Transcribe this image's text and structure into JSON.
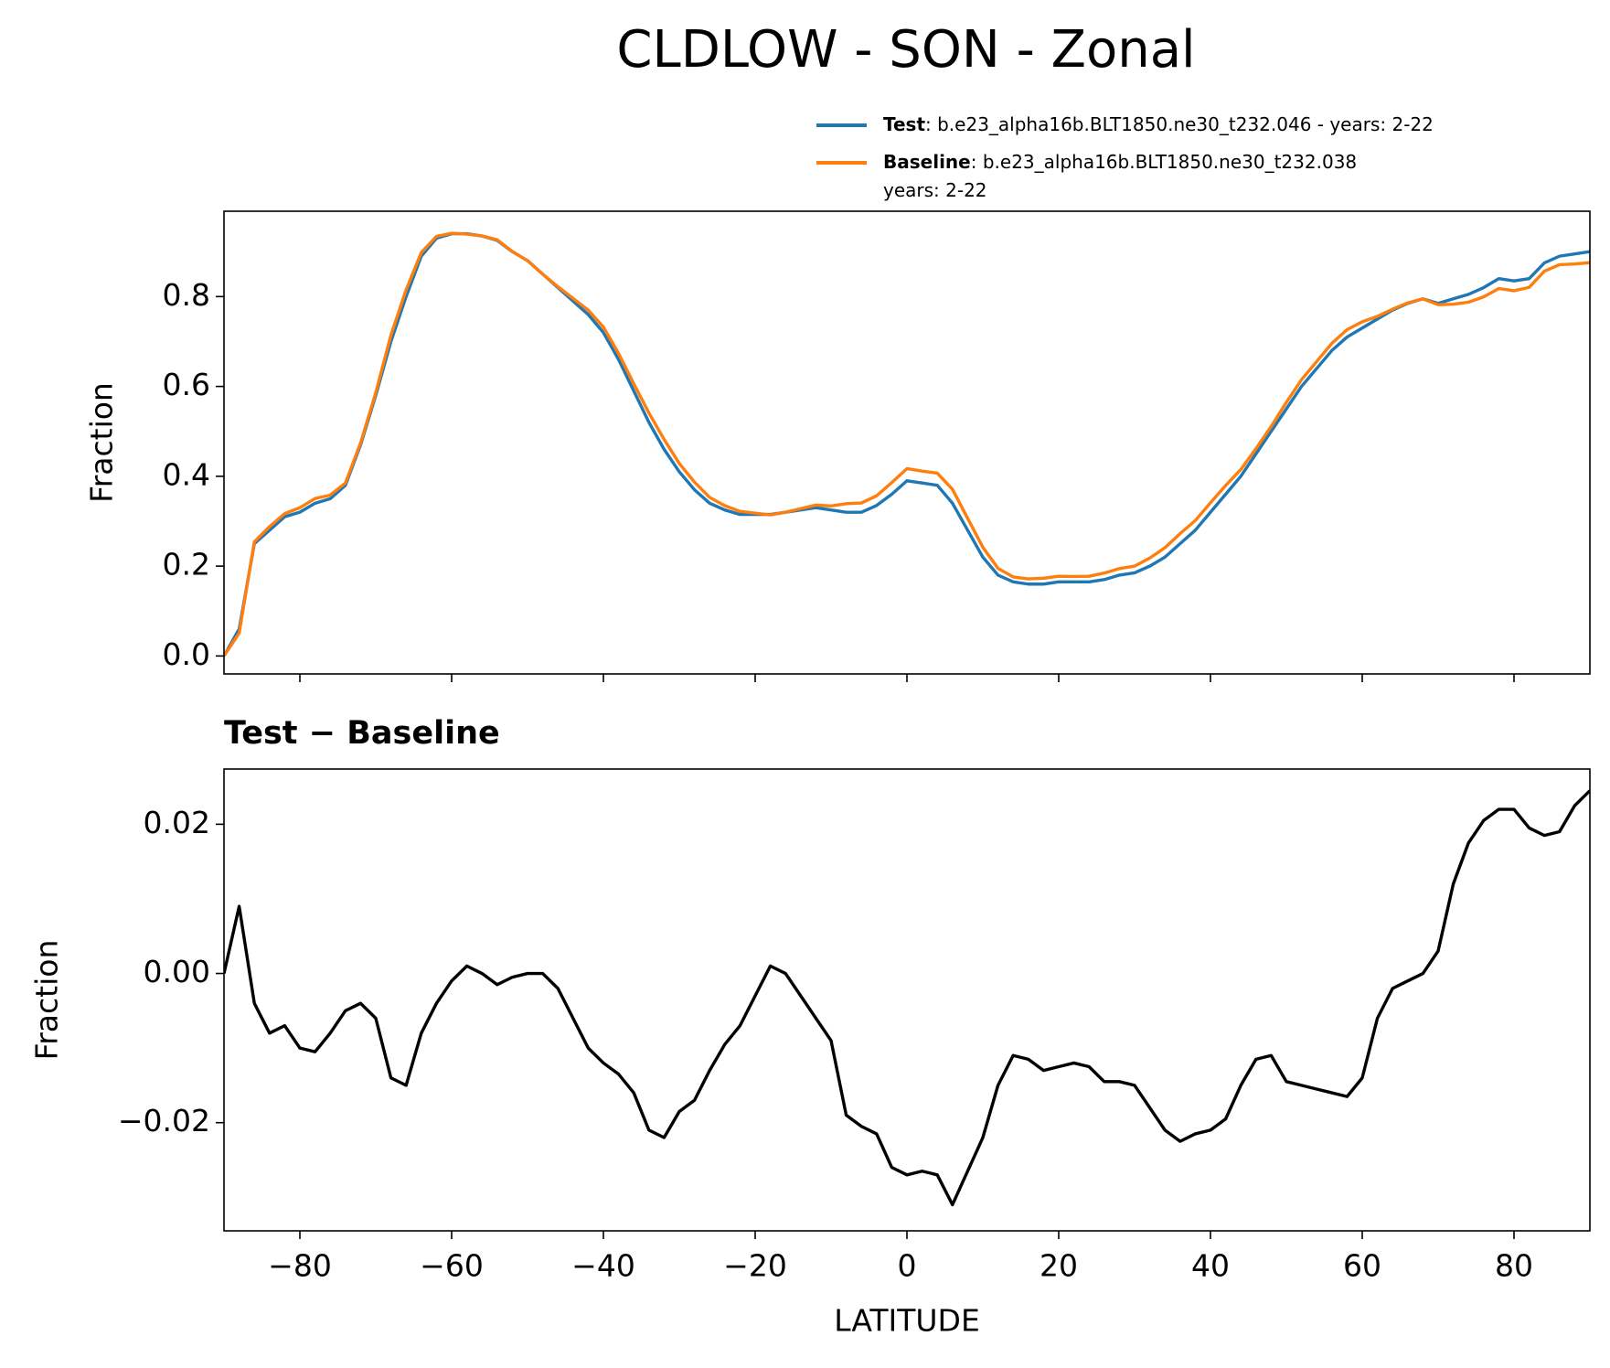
{
  "title": "CLDLOW - SON - Zonal",
  "chart_data": [
    {
      "type": "line",
      "ylabel": "Fraction",
      "legend_text": [
        [
          ": b.e23_alpha16b.BLT1850.ne30_t232.046 - years: 2-22"
        ],
        [
          ": b.e23_alpha16b.BLT1850.ne30_t232.038",
          "years: 2-22"
        ]
      ],
      "x_tick_labels": false,
      "xlim": [
        -90,
        90
      ],
      "xticks": [
        -80,
        -60,
        -40,
        -20,
        0,
        20,
        40,
        60,
        80
      ],
      "ylim": [
        -0.04,
        0.99
      ],
      "yticks": [
        {
          "value": 0,
          "label": "0.0"
        },
        {
          "value": 0.2,
          "label": "0.2"
        },
        {
          "value": 0.4,
          "label": "0.4"
        },
        {
          "value": 0.6,
          "label": "0.6"
        },
        {
          "value": 0.8,
          "label": "0.8"
        }
      ],
      "x": [
        -90,
        -88,
        -86,
        -84,
        -82,
        -80,
        -78,
        -76,
        -74,
        -72,
        -70,
        -68,
        -66,
        -64,
        -62,
        -60,
        -58,
        -56,
        -54,
        -52,
        -50,
        -48,
        -46,
        -44,
        -42,
        -40,
        -38,
        -36,
        -34,
        -32,
        -30,
        -28,
        -26,
        -24,
        -22,
        -20,
        -18,
        -16,
        -14,
        -12,
        -10,
        -8,
        -6,
        -4,
        -2,
        0,
        2,
        4,
        6,
        8,
        10,
        12,
        14,
        16,
        18,
        20,
        22,
        24,
        26,
        28,
        30,
        32,
        34,
        36,
        38,
        40,
        42,
        44,
        46,
        48,
        50,
        52,
        54,
        56,
        58,
        60,
        62,
        64,
        66,
        68,
        70,
        72,
        74,
        76,
        78,
        80,
        82,
        84,
        86,
        88,
        90
      ],
      "series": [
        {
          "name": "Test",
          "color": "#1f77b4",
          "values": [
            0.0,
            0.06,
            0.25,
            0.28,
            0.31,
            0.32,
            0.34,
            0.35,
            0.38,
            0.47,
            0.58,
            0.7,
            0.8,
            0.89,
            0.93,
            0.94,
            0.94,
            0.935,
            0.925,
            0.9,
            0.88,
            0.85,
            0.82,
            0.79,
            0.76,
            0.72,
            0.66,
            0.59,
            0.52,
            0.46,
            0.41,
            0.37,
            0.34,
            0.325,
            0.315,
            0.315,
            0.315,
            0.32,
            0.325,
            0.33,
            0.325,
            0.32,
            0.32,
            0.335,
            0.36,
            0.39,
            0.385,
            0.38,
            0.34,
            0.28,
            0.22,
            0.18,
            0.165,
            0.16,
            0.16,
            0.165,
            0.165,
            0.165,
            0.17,
            0.18,
            0.185,
            0.2,
            0.22,
            0.25,
            0.28,
            0.32,
            0.36,
            0.4,
            0.45,
            0.5,
            0.55,
            0.6,
            0.64,
            0.68,
            0.71,
            0.73,
            0.75,
            0.77,
            0.785,
            0.795,
            0.785,
            0.795,
            0.805,
            0.82,
            0.84,
            0.835,
            0.84,
            0.875,
            0.89,
            0.895,
            0.9
          ]
        },
        {
          "name": "Baseline",
          "color": "#ff7f0e",
          "values": [
            0.0,
            0.051,
            0.254,
            0.288,
            0.317,
            0.33,
            0.3505,
            0.358,
            0.385,
            0.474,
            0.586,
            0.714,
            0.815,
            0.898,
            0.934,
            0.941,
            0.939,
            0.935,
            0.9265,
            0.9005,
            0.88,
            0.85,
            0.822,
            0.796,
            0.77,
            0.732,
            0.6735,
            0.606,
            0.541,
            0.482,
            0.4285,
            0.387,
            0.353,
            0.3345,
            0.322,
            0.318,
            0.314,
            0.32,
            0.328,
            0.336,
            0.334,
            0.339,
            0.3405,
            0.3565,
            0.386,
            0.417,
            0.4115,
            0.407,
            0.371,
            0.3065,
            0.242,
            0.195,
            0.176,
            0.1715,
            0.173,
            0.1775,
            0.177,
            0.1775,
            0.1845,
            0.1945,
            0.2,
            0.218,
            0.241,
            0.2725,
            0.3015,
            0.341,
            0.3795,
            0.415,
            0.4615,
            0.511,
            0.5645,
            0.615,
            0.6555,
            0.696,
            0.7265,
            0.744,
            0.756,
            0.772,
            0.786,
            0.795,
            0.782,
            0.783,
            0.7875,
            0.7995,
            0.818,
            0.813,
            0.8205,
            0.8565,
            0.871,
            0.8725,
            0.8755
          ]
        }
      ]
    },
    {
      "type": "line",
      "title": "Test − Baseline",
      "ylabel": "Fraction",
      "xlabel": "LATITUDE",
      "x_tick_labels": true,
      "xlim": [
        -90,
        90
      ],
      "xticks": [
        {
          "value": -80,
          "label": "−80"
        },
        {
          "value": -60,
          "label": "−60"
        },
        {
          "value": -40,
          "label": "−40"
        },
        {
          "value": -20,
          "label": "−20"
        },
        0,
        20,
        40,
        60,
        80
      ],
      "ylim": [
        -0.0345,
        0.0274
      ],
      "yticks": [
        {
          "value": -0.02,
          "label": "−0.02"
        },
        {
          "value": 0,
          "label": "0.00"
        },
        0.02
      ],
      "x": [
        -90,
        -88,
        -86,
        -84,
        -82,
        -80,
        -78,
        -76,
        -74,
        -72,
        -70,
        -68,
        -66,
        -64,
        -62,
        -60,
        -58,
        -56,
        -54,
        -52,
        -50,
        -48,
        -46,
        -44,
        -42,
        -40,
        -38,
        -36,
        -34,
        -32,
        -30,
        -28,
        -26,
        -24,
        -22,
        -20,
        -18,
        -16,
        -14,
        -12,
        -10,
        -8,
        -6,
        -4,
        -2,
        0,
        2,
        4,
        6,
        8,
        10,
        12,
        14,
        16,
        18,
        20,
        22,
        24,
        26,
        28,
        30,
        32,
        34,
        36,
        38,
        40,
        42,
        44,
        46,
        48,
        50,
        52,
        54,
        56,
        58,
        60,
        62,
        64,
        66,
        68,
        70,
        72,
        74,
        76,
        78,
        80,
        82,
        84,
        86,
        88,
        90
      ],
      "series": [
        {
          "color": "#000000",
          "values": [
            0.0,
            0.009,
            -0.004,
            -0.008,
            -0.007,
            -0.01,
            -0.0105,
            -0.008,
            -0.005,
            -0.004,
            -0.006,
            -0.014,
            -0.015,
            -0.008,
            -0.004,
            -0.001,
            0.001,
            0.0,
            -0.0015,
            -0.0005,
            0.0,
            0.0,
            -0.002,
            -0.006,
            -0.01,
            -0.012,
            -0.0135,
            -0.016,
            -0.021,
            -0.022,
            -0.0185,
            -0.017,
            -0.013,
            -0.0095,
            -0.007,
            -0.003,
            0.001,
            0.0,
            -0.003,
            -0.006,
            -0.009,
            -0.019,
            -0.0205,
            -0.0215,
            -0.026,
            -0.027,
            -0.0265,
            -0.027,
            -0.031,
            -0.0265,
            -0.022,
            -0.015,
            -0.011,
            -0.0115,
            -0.013,
            -0.0125,
            -0.012,
            -0.0125,
            -0.0145,
            -0.0145,
            -0.015,
            -0.018,
            -0.021,
            -0.0225,
            -0.0215,
            -0.021,
            -0.0195,
            -0.015,
            -0.0115,
            -0.011,
            -0.0145,
            -0.015,
            -0.0155,
            -0.016,
            -0.0165,
            -0.014,
            -0.006,
            -0.002,
            -0.001,
            0.0,
            0.003,
            0.012,
            0.0175,
            0.0205,
            0.022,
            0.022,
            0.0195,
            0.0185,
            0.019,
            0.0225,
            0.0245
          ]
        }
      ]
    }
  ]
}
